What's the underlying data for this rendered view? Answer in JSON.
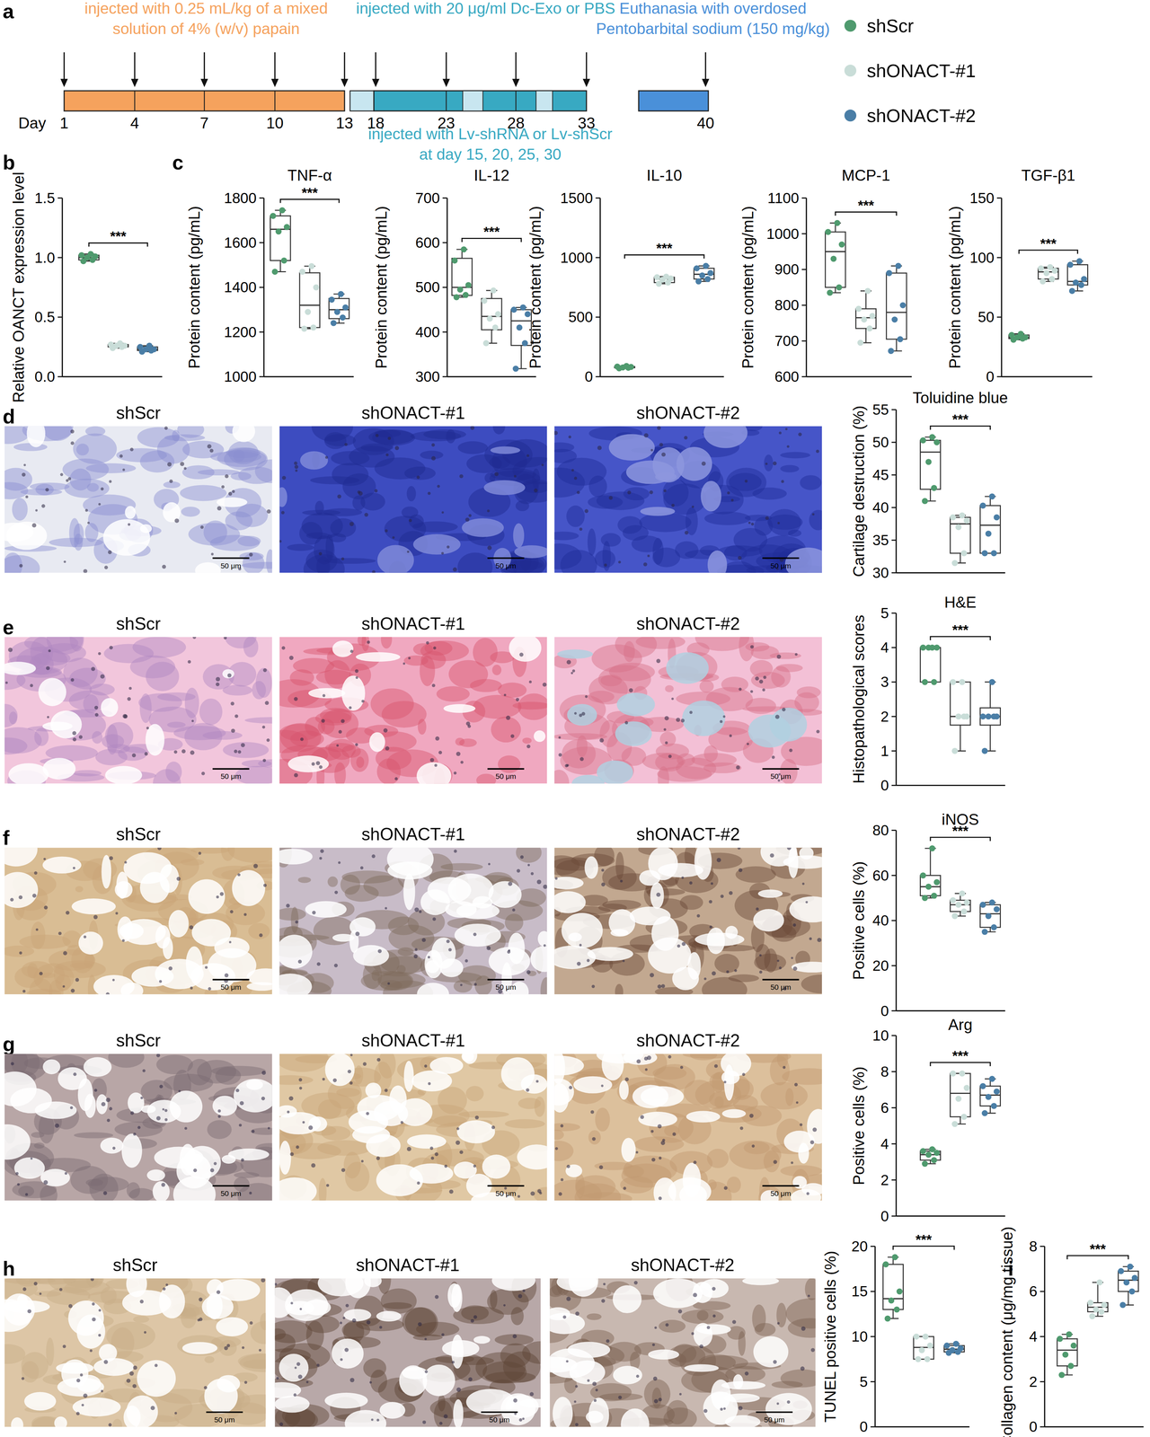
{
  "timeline": {
    "panel": "a",
    "day_label": "Day",
    "days": [
      1,
      4,
      7,
      10,
      13,
      18,
      23,
      28,
      33,
      40
    ],
    "annotations": [
      {
        "lines": [
          "injected with 0.25 mL/kg of a mixed",
          "solution of 4% (w/v) papain"
        ],
        "color": "#f5a25d"
      },
      {
        "lines": [
          "injected with 20 μg/ml Dc-Exo or PBS"
        ],
        "color": "#38a9c2"
      },
      {
        "lines": [
          "Euthanasia with overdosed",
          "Pentobarbital sodium (150 mg/kg)"
        ],
        "color": "#4a90d9"
      },
      {
        "lines": [
          "injected with Lv-shRNA or Lv-shScr",
          "at day 15, 20, 25, 30"
        ],
        "color": "#38a9c2"
      }
    ]
  },
  "legend": [
    {
      "name": "shScr",
      "color": "#4f9a6e"
    },
    {
      "name": "shONACT-#1",
      "color": "#c9ddd8"
    },
    {
      "name": "shONACT-#2",
      "color": "#4a7ea6"
    }
  ],
  "scale_bar": "50 μm",
  "image_panels": [
    {
      "panel": "d",
      "labels": [
        "shScr",
        "shONACT-#1",
        "shONACT-#2"
      ]
    },
    {
      "panel": "e",
      "labels": [
        "shScr",
        "shONACT-#1",
        "shONACT-#2"
      ]
    },
    {
      "panel": "f",
      "labels": [
        "shScr",
        "shONACT-#1",
        "shONACT-#2"
      ]
    },
    {
      "panel": "g",
      "labels": [
        "shScr",
        "shONACT-#1",
        "shONACT-#2"
      ]
    },
    {
      "panel": "h",
      "labels": [
        "shScr",
        "shONACT-#1",
        "shONACT-#2"
      ]
    }
  ],
  "chart_data": [
    {
      "type": "box",
      "panel": "b",
      "y_label": "Relative OANCT expression level",
      "ylim": [
        0,
        1.5
      ],
      "yticks": [
        {
          "value": 0,
          "label": "0.0"
        },
        {
          "value": 0.5,
          "label": "0.5"
        },
        {
          "value": 1,
          "label": "1.0"
        },
        {
          "value": 1.5,
          "label": "1.5"
        }
      ],
      "tick_labels": "y",
      "significance": "***",
      "boxes": [
        {
          "min": 0.97,
          "q1": 0.98,
          "median": 1.0,
          "q3": 1.02,
          "max": 1.03,
          "points": [
            0.97,
            0.98,
            1.0,
            1.01,
            1.02,
            1.03
          ]
        },
        {
          "min": 0.24,
          "q1": 0.25,
          "median": 0.26,
          "q3": 0.27,
          "max": 0.28,
          "points": [
            0.24,
            0.25,
            0.26,
            0.26,
            0.27,
            0.28
          ]
        },
        {
          "min": 0.21,
          "q1": 0.22,
          "median": 0.23,
          "q3": 0.25,
          "max": 0.26,
          "points": [
            0.21,
            0.22,
            0.23,
            0.23,
            0.25,
            0.26
          ]
        }
      ]
    },
    {
      "type": "box",
      "panel": "c",
      "title": "TNF-α",
      "y_label": "Protein content (pg/mL)",
      "ylim": [
        1000,
        1800
      ],
      "yticks": [
        1000,
        1200,
        1400,
        1600,
        1800
      ],
      "tick_labels": "y",
      "significance": "***",
      "boxes": [
        {
          "min": 1470,
          "q1": 1520,
          "median": 1660,
          "q3": 1720,
          "max": 1745,
          "points": [
            1470,
            1520,
            1650,
            1670,
            1720,
            1745
          ]
        },
        {
          "min": 1215,
          "q1": 1220,
          "median": 1320,
          "q3": 1465,
          "max": 1495,
          "points": [
            1215,
            1220,
            1290,
            1400,
            1470,
            1495
          ]
        },
        {
          "min": 1240,
          "q1": 1260,
          "median": 1300,
          "q3": 1350,
          "max": 1370,
          "points": [
            1240,
            1265,
            1290,
            1310,
            1345,
            1370
          ]
        }
      ]
    },
    {
      "type": "box",
      "title": "IL-12",
      "y_label": "Protein content (pg/mL)",
      "ylim": [
        300,
        700
      ],
      "yticks": [
        300,
        400,
        500,
        600,
        700
      ],
      "tick_labels": "y",
      "significance": "***",
      "boxes": [
        {
          "min": 478,
          "q1": 482,
          "median": 500,
          "q3": 565,
          "max": 585,
          "points": [
            478,
            483,
            495,
            505,
            560,
            585
          ]
        },
        {
          "min": 375,
          "q1": 405,
          "median": 435,
          "q3": 475,
          "max": 493,
          "points": [
            375,
            410,
            430,
            440,
            470,
            493
          ]
        },
        {
          "min": 318,
          "q1": 370,
          "median": 425,
          "q3": 450,
          "max": 455,
          "points": [
            318,
            375,
            410,
            440,
            450,
            455
          ]
        }
      ]
    },
    {
      "type": "box",
      "title": "IL-10",
      "y_label": "Protein content (pg/mL)",
      "ylim": [
        0,
        1500
      ],
      "yticks": [
        0,
        500,
        1000,
        1500
      ],
      "tick_labels": "y",
      "significance": "***",
      "boxes": [
        {
          "min": 70,
          "q1": 75,
          "median": 80,
          "q3": 85,
          "max": 90,
          "points": [
            70,
            75,
            78,
            82,
            85,
            90
          ]
        },
        {
          "min": 780,
          "q1": 790,
          "median": 820,
          "q3": 835,
          "max": 840,
          "points": [
            780,
            790,
            815,
            825,
            835,
            840
          ]
        },
        {
          "min": 800,
          "q1": 820,
          "median": 860,
          "q3": 910,
          "max": 930,
          "points": [
            800,
            820,
            850,
            870,
            910,
            930
          ]
        }
      ]
    },
    {
      "type": "box",
      "title": "MCP-1",
      "y_label": "Protein content (pg/mL)",
      "ylim": [
        600,
        1100
      ],
      "yticks": [
        600,
        700,
        800,
        900,
        1000,
        1100
      ],
      "tick_labels": "y",
      "significance": "***",
      "boxes": [
        {
          "min": 835,
          "q1": 850,
          "median": 950,
          "q3": 1005,
          "max": 1030,
          "points": [
            835,
            850,
            930,
            970,
            1005,
            1030
          ]
        },
        {
          "min": 695,
          "q1": 735,
          "median": 765,
          "q3": 790,
          "max": 840,
          "points": [
            695,
            735,
            760,
            770,
            790,
            840
          ]
        },
        {
          "min": 672,
          "q1": 705,
          "median": 780,
          "q3": 890,
          "max": 910,
          "points": [
            672,
            705,
            760,
            800,
            890,
            910
          ]
        }
      ]
    },
    {
      "type": "box",
      "title": "TGF-β1",
      "y_label": "Protein content (pg/mL)",
      "ylim": [
        0,
        150
      ],
      "yticks": [
        0,
        50,
        100,
        150
      ],
      "tick_labels": "y",
      "significance": "***",
      "boxes": [
        {
          "min": 31,
          "q1": 32,
          "median": 33,
          "q3": 35,
          "max": 36,
          "points": [
            31,
            32,
            33,
            33,
            35,
            36
          ]
        },
        {
          "min": 80,
          "q1": 82,
          "median": 88,
          "q3": 91,
          "max": 92,
          "points": [
            80,
            82,
            87,
            89,
            91,
            92
          ]
        },
        {
          "min": 72,
          "q1": 77,
          "median": 80,
          "q3": 94,
          "max": 97,
          "points": [
            72,
            77,
            79,
            82,
            94,
            97
          ]
        }
      ]
    },
    {
      "type": "box",
      "title": "Toluidine blue",
      "y_label": "Cartilage destruction (%)",
      "ylim": [
        30,
        55
      ],
      "yticks": [
        30,
        35,
        40,
        45,
        50,
        55
      ],
      "tick_labels": "y",
      "significance": "***",
      "boxes": [
        {
          "min": 41,
          "q1": 42.8,
          "median": 48.5,
          "q3": 50.3,
          "max": 50.8,
          "points": [
            41,
            43,
            47,
            50,
            50.3,
            50.8
          ]
        },
        {
          "min": 31.5,
          "q1": 33,
          "median": 37.5,
          "q3": 38.5,
          "max": 38.8,
          "points": [
            31.5,
            33,
            37,
            38,
            38.5,
            38.8
          ]
        },
        {
          "min": 33,
          "q1": 33,
          "median": 37.3,
          "q3": 40.3,
          "max": 41.7,
          "points": [
            33,
            33,
            36,
            38.5,
            40.3,
            41.7
          ]
        }
      ]
    },
    {
      "type": "box",
      "title": "H&E",
      "y_label": "Histopathological scores",
      "ylim": [
        0,
        5
      ],
      "yticks": [
        0,
        1,
        2,
        3,
        4,
        5
      ],
      "tick_labels": "y",
      "significance": "***",
      "boxes": [
        {
          "min": 3,
          "q1": 3,
          "median": 4,
          "q3": 4,
          "max": 4,
          "points": [
            3,
            3,
            4,
            4,
            4,
            4
          ]
        },
        {
          "min": 1,
          "q1": 1.75,
          "median": 2,
          "q3": 3,
          "max": 3,
          "points": [
            1,
            2,
            2,
            2,
            3,
            3
          ]
        },
        {
          "min": 1,
          "q1": 1.75,
          "median": 2,
          "q3": 2.25,
          "max": 3,
          "points": [
            1,
            2,
            2,
            2,
            2,
            3
          ]
        }
      ]
    },
    {
      "type": "box",
      "title": "iNOS",
      "y_label": "Positive cells (%)",
      "ylim": [
        0,
        80
      ],
      "yticks": [
        0,
        20,
        40,
        60,
        80
      ],
      "tick_labels": "y",
      "significance": "***",
      "boxes": [
        {
          "min": 50,
          "q1": 51,
          "median": 55,
          "q3": 60,
          "max": 72,
          "points": [
            50,
            51,
            55,
            57,
            60,
            72
          ]
        },
        {
          "min": 42,
          "q1": 44,
          "median": 47,
          "q3": 49,
          "max": 52,
          "points": [
            42,
            44,
            47,
            48,
            49,
            52
          ]
        },
        {
          "min": 35,
          "q1": 37,
          "median": 43,
          "q3": 47,
          "max": 48,
          "points": [
            35,
            37,
            42,
            45,
            47,
            48
          ]
        }
      ]
    },
    {
      "type": "box",
      "title": "Arg",
      "y_label": "Positive cells (%)",
      "ylim": [
        0,
        10
      ],
      "yticks": [
        0,
        2,
        4,
        6,
        8,
        10
      ],
      "tick_labels": "y",
      "significance": "***",
      "boxes": [
        {
          "min": 2.9,
          "q1": 3.1,
          "median": 3.4,
          "q3": 3.6,
          "max": 3.7,
          "points": [
            2.9,
            3.1,
            3.4,
            3.5,
            3.6,
            3.7
          ]
        },
        {
          "min": 5.1,
          "q1": 5.5,
          "median": 6.8,
          "q3": 7.9,
          "max": 7.9,
          "points": [
            5.1,
            5.5,
            6.5,
            7.1,
            7.9,
            7.9
          ]
        },
        {
          "min": 5.7,
          "q1": 6.1,
          "median": 6.7,
          "q3": 7.2,
          "max": 7.6,
          "points": [
            5.7,
            6.1,
            6.6,
            6.9,
            7.2,
            7.6
          ]
        }
      ]
    },
    {
      "type": "box",
      "y_label": "TUNEL positive cells (%)",
      "ylim": [
        0,
        20
      ],
      "yticks": [
        0,
        5,
        10,
        15,
        20
      ],
      "tick_labels": "y",
      "significance": "***",
      "boxes": [
        {
          "min": 12,
          "q1": 13,
          "median": 14.2,
          "q3": 18,
          "max": 18.8,
          "points": [
            12,
            13,
            14,
            15,
            18,
            18.8
          ]
        },
        {
          "min": 7.5,
          "q1": 7.5,
          "median": 8.8,
          "q3": 10,
          "max": 10,
          "points": [
            7.5,
            7.5,
            8.5,
            9,
            10,
            10
          ]
        },
        {
          "min": 8.2,
          "q1": 8.3,
          "median": 8.6,
          "q3": 9,
          "max": 9.2,
          "points": [
            8.2,
            8.3,
            8.5,
            8.7,
            9,
            9.2
          ]
        }
      ]
    },
    {
      "type": "box",
      "panel": "i",
      "y_label": "Collagen content (μg/mg tissue)",
      "ylim": [
        0,
        8
      ],
      "yticks": [
        0,
        2,
        4,
        6,
        8
      ],
      "tick_labels": "y",
      "significance": "***",
      "boxes": [
        {
          "min": 2.3,
          "q1": 2.7,
          "median": 3.4,
          "q3": 3.9,
          "max": 4.1,
          "points": [
            2.3,
            2.7,
            3.2,
            3.6,
            3.9,
            4.1
          ]
        },
        {
          "min": 4.9,
          "q1": 5.1,
          "median": 5.3,
          "q3": 5.5,
          "max": 6.4,
          "points": [
            4.9,
            5.1,
            5.2,
            5.4,
            5.5,
            6.4
          ]
        },
        {
          "min": 5.4,
          "q1": 6.0,
          "median": 6.5,
          "q3": 6.9,
          "max": 7.1,
          "points": [
            5.4,
            6,
            6.4,
            6.6,
            6.9,
            7.1
          ]
        }
      ]
    }
  ]
}
